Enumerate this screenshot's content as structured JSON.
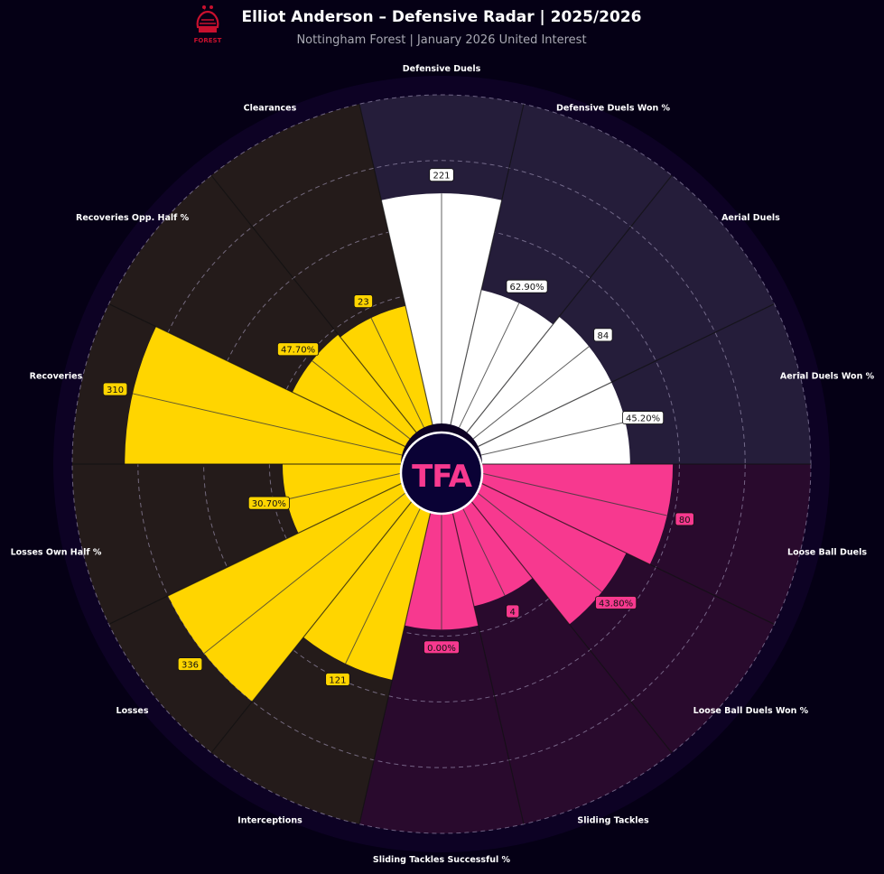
{
  "header": {
    "title": "Elliot Anderson – Defensive Radar | 2025/2026",
    "subtitle": "Nottingham Forest | January 2026 United Interest",
    "crest_text": "FOREST",
    "center_logo_text": "TFA"
  },
  "colors": {
    "background": "#050015",
    "wheel_background": "#0d0224",
    "attack_sector_bg": "#251d3a",
    "possession_sector_bg": "#241b1a",
    "tackle_sector_bg": "#290a2d",
    "white_bars": "#ffffff",
    "yellow_bars": "#ffd500",
    "pink_bars": "#f7398f",
    "center_circle": "#0a0235",
    "crest": "#c8102e"
  },
  "chart_data": {
    "type": "radar",
    "title": "Elliot Anderson – Defensive Radar | 2025/2026",
    "subtitle": "Nottingham Forest | January 2026 United Interest",
    "grid": true,
    "rlim": [
      0,
      100
    ],
    "grid_rings": [
      20,
      40,
      60,
      80,
      100
    ],
    "categories": [
      {
        "name": "Defensive Duels",
        "value_label": "221",
        "percentile": 70,
        "group": "white"
      },
      {
        "name": "Defensive Duels Won %",
        "value_label": "62.90%",
        "percentile": 42,
        "group": "white"
      },
      {
        "name": "Aerial Duels",
        "value_label": "84",
        "percentile": 45,
        "group": "white"
      },
      {
        "name": "Aerial Duels Won %",
        "value_label": "45.20%",
        "percentile": 45,
        "group": "white"
      },
      {
        "name": "Loose Ball Duels",
        "value_label": "80",
        "percentile": 58,
        "group": "pink"
      },
      {
        "name": "Loose Ball Duels Won %",
        "value_label": "43.80%",
        "percentile": 50,
        "group": "pink"
      },
      {
        "name": "Sliding Tackles",
        "value_label": "4",
        "percentile": 32,
        "group": "pink"
      },
      {
        "name": "Sliding Tackles Successful %",
        "value_label": "0.00%",
        "percentile": 38,
        "group": "pink"
      },
      {
        "name": "Interceptions",
        "value_label": "121",
        "percentile": 55,
        "group": "yellow"
      },
      {
        "name": "Losses",
        "value_label": "336",
        "percentile": 80,
        "group": "yellow"
      },
      {
        "name": "Losses Own Half %",
        "value_label": "30.70%",
        "percentile": 36,
        "group": "yellow"
      },
      {
        "name": "Recoveries",
        "value_label": "310",
        "percentile": 84,
        "group": "yellow"
      },
      {
        "name": "Recoveries Opp. Half %",
        "value_label": "47.70%",
        "percentile": 38,
        "group": "yellow"
      },
      {
        "name": "Clearances",
        "value_label": "23",
        "percentile": 37,
        "group": "yellow"
      }
    ]
  }
}
